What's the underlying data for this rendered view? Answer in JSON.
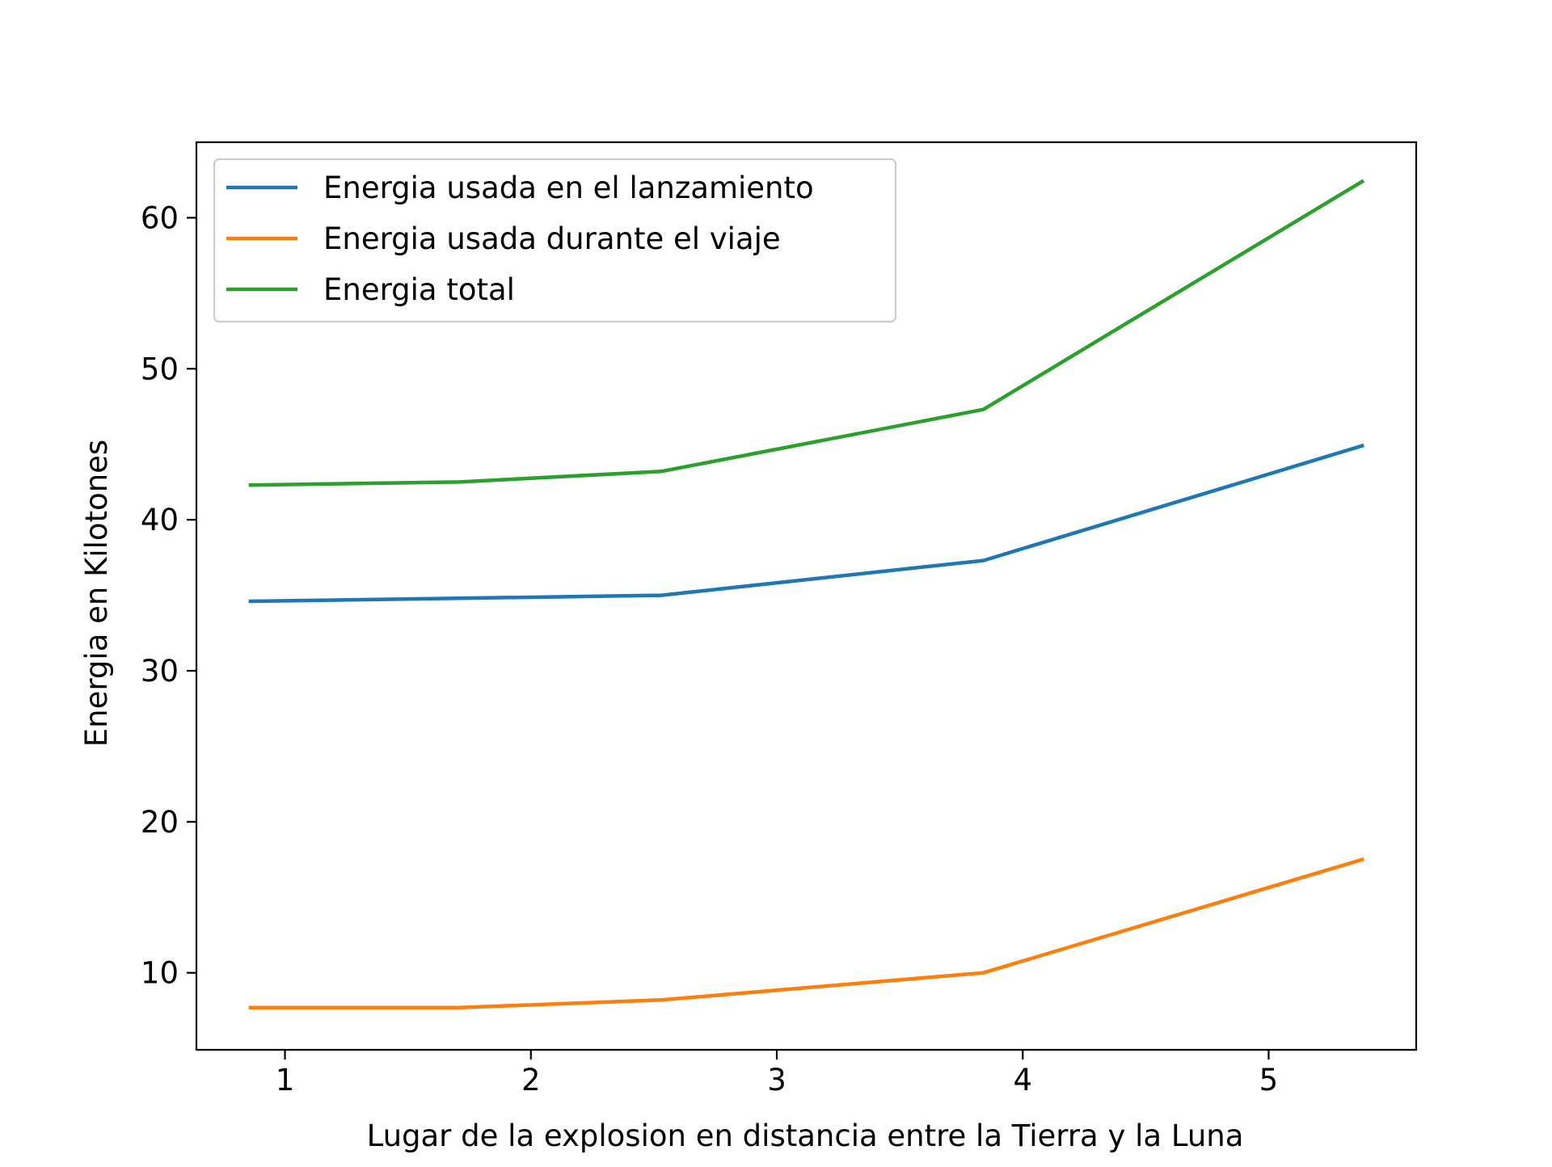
{
  "chart_data": {
    "type": "line",
    "title": "",
    "xlabel": "Lugar de la explosion en distancia entre la Tierra y la Luna",
    "ylabel": "Energia en Kilotones",
    "xlim": [
      0.64,
      5.6
    ],
    "ylim": [
      4.9,
      65
    ],
    "xticks": [
      1,
      2,
      3,
      4,
      5
    ],
    "yticks": [
      10,
      20,
      30,
      40,
      50,
      60
    ],
    "xtick_labels": [
      "1",
      "2",
      "3",
      "4",
      "5"
    ],
    "ytick_labels": [
      "10",
      "20",
      "30",
      "40",
      "50",
      "60"
    ],
    "grid": false,
    "legend_position": "top-left",
    "x": [
      0.86,
      1.71,
      2.53,
      3.84,
      5.38
    ],
    "series": [
      {
        "name": "Energia usada en el lanzamiento",
        "color": "#1f77b4",
        "values": [
          34.6,
          34.8,
          35.0,
          37.3,
          44.9
        ]
      },
      {
        "name": "Energia usada durante el viaje",
        "color": "#ff7f0e",
        "values": [
          7.7,
          7.7,
          8.2,
          10.0,
          17.5
        ]
      },
      {
        "name": "Energia total",
        "color": "#2ca02c",
        "values": [
          42.3,
          42.5,
          43.2,
          47.3,
          62.4
        ]
      }
    ]
  }
}
